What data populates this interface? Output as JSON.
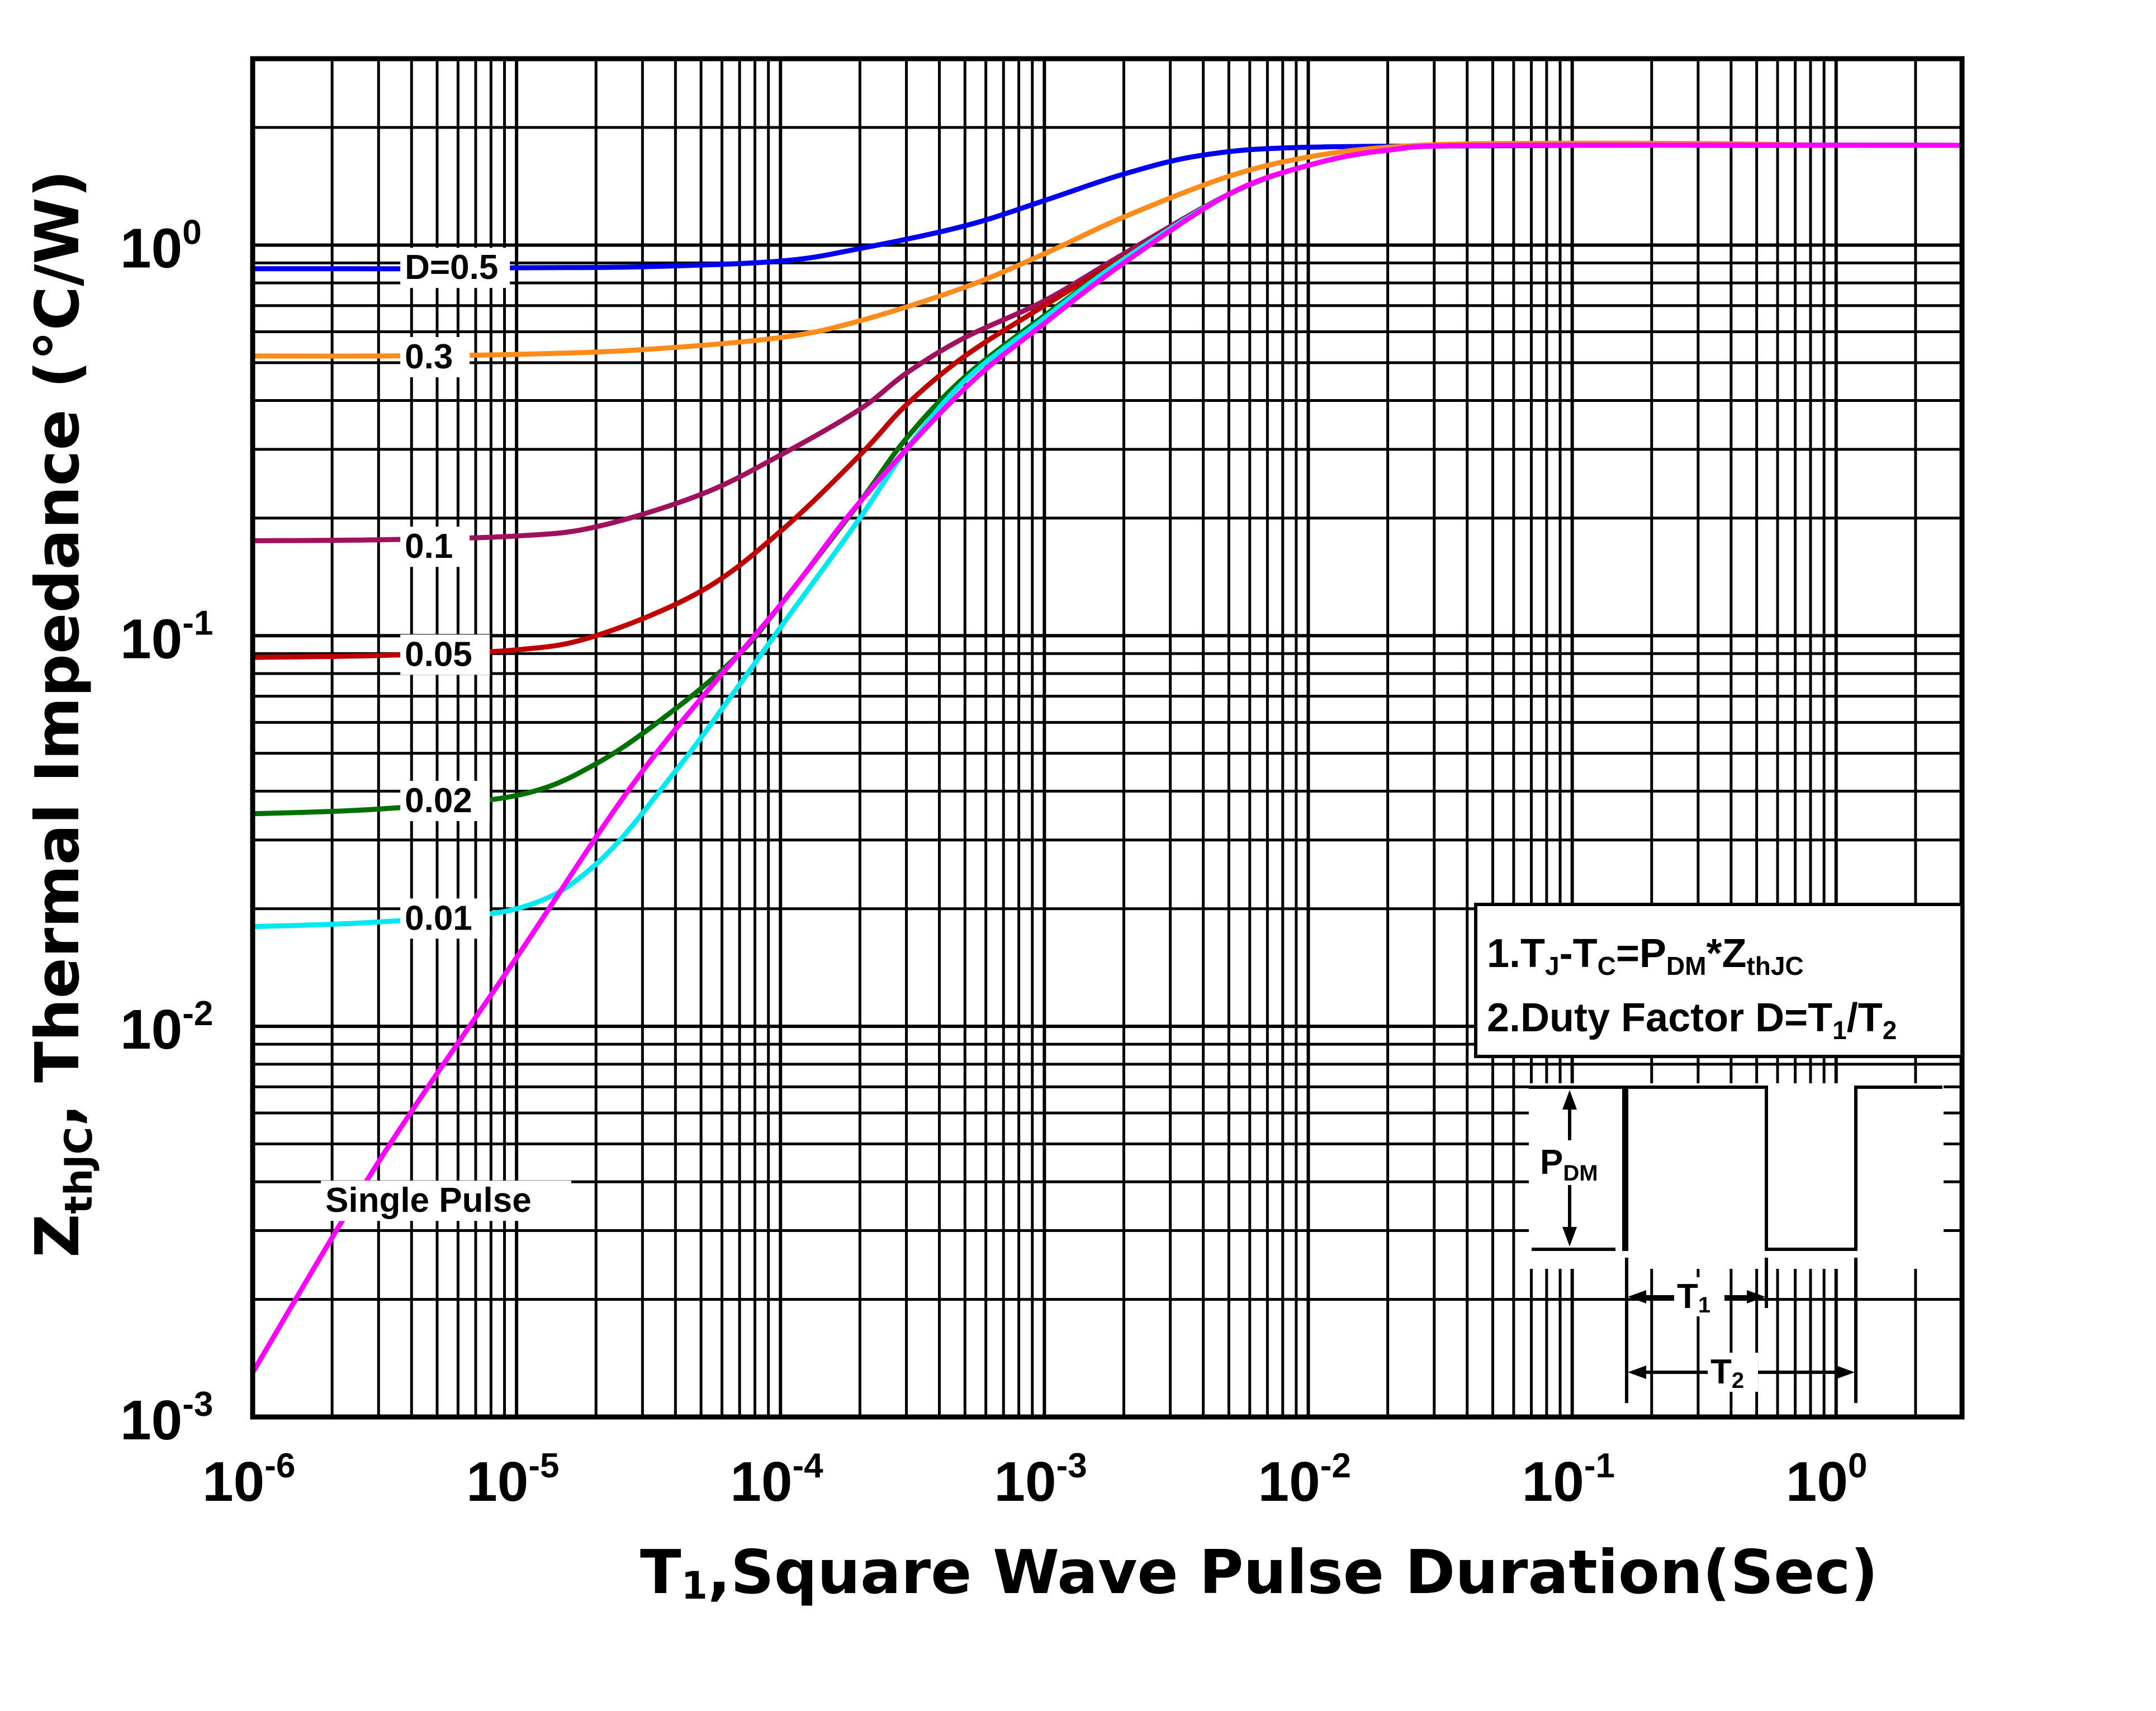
{
  "chart_data": {
    "type": "line",
    "title": "",
    "xlabel": "T1,Square Wave Pulse Duration(Sec)",
    "xlabel_parts": {
      "main": "T",
      "sub": "1",
      "rest": ",Square Wave Pulse Duration(Sec)"
    },
    "ylabel": "ZthJC, Thermal Impedance (°C/W)",
    "ylabel_parts": {
      "main": "Z",
      "sub": "thJC",
      "rest": ", Thermal  Impedance (°C/W)"
    },
    "xscale": "log",
    "yscale": "log",
    "xlim": [
      1e-06,
      3.0
    ],
    "ylim": [
      0.001,
      3.0
    ],
    "grid": true,
    "x_ticks": [
      {
        "base": "10",
        "exp": "-6",
        "value": 1e-06
      },
      {
        "base": "10",
        "exp": "-5",
        "value": 1e-05
      },
      {
        "base": "10",
        "exp": "-4",
        "value": 0.0001
      },
      {
        "base": "10",
        "exp": "-3",
        "value": 0.001
      },
      {
        "base": "10",
        "exp": "-2",
        "value": 0.01
      },
      {
        "base": "10",
        "exp": "-1",
        "value": 0.1
      },
      {
        "base": "10",
        "exp": "0",
        "value": 1
      }
    ],
    "y_ticks": [
      {
        "base": "10",
        "exp": "0",
        "value": 1
      },
      {
        "base": "10",
        "exp": "-1",
        "value": 0.1
      },
      {
        "base": "10",
        "exp": "-2",
        "value": 0.01
      },
      {
        "base": "10",
        "exp": "-3",
        "value": 0.001
      }
    ],
    "series": [
      {
        "name": "D=0.5",
        "color": "#0000ee",
        "label": "D=0.5",
        "label_at": [
          1e-05,
          0.88
        ],
        "points": [
          [
            1e-06,
            0.87
          ],
          [
            2e-06,
            0.87
          ],
          [
            5e-06,
            0.87
          ],
          [
            1e-05,
            0.875
          ],
          [
            3e-05,
            0.88
          ],
          [
            0.0001,
            0.91
          ],
          [
            0.0002,
            0.98
          ],
          [
            0.0005,
            1.12
          ],
          [
            0.001,
            1.3
          ],
          [
            0.002,
            1.52
          ],
          [
            0.004,
            1.7
          ],
          [
            0.01,
            1.78
          ],
          [
            0.1,
            1.8
          ],
          [
            0.2,
            1.82
          ],
          [
            0.3,
            1.8
          ],
          [
            1,
            1.8
          ],
          [
            3,
            1.8
          ]
        ]
      },
      {
        "name": "0.3",
        "color": "#ff8c1a",
        "label": "0.3",
        "label_at": [
          1e-05,
          0.52
        ],
        "points": [
          [
            1e-06,
            0.52
          ],
          [
            3e-06,
            0.52
          ],
          [
            1e-05,
            0.525
          ],
          [
            3e-05,
            0.54
          ],
          [
            0.0001,
            0.58
          ],
          [
            0.0002,
            0.64
          ],
          [
            0.0005,
            0.78
          ],
          [
            0.001,
            0.95
          ],
          [
            0.002,
            1.18
          ],
          [
            0.005,
            1.5
          ],
          [
            0.01,
            1.68
          ],
          [
            0.02,
            1.78
          ],
          [
            0.05,
            1.82
          ],
          [
            0.3,
            1.82
          ],
          [
            1,
            1.8
          ],
          [
            3,
            1.8
          ]
        ]
      },
      {
        "name": "0.1",
        "color": "#a0105c",
        "label": "0.1",
        "label_at": [
          1e-05,
          0.17
        ],
        "points": [
          [
            1e-06,
            0.175
          ],
          [
            3e-06,
            0.176
          ],
          [
            1e-05,
            0.18
          ],
          [
            2e-05,
            0.19
          ],
          [
            5e-05,
            0.23
          ],
          [
            0.0001,
            0.29
          ],
          [
            0.0002,
            0.38
          ],
          [
            0.0003,
            0.47
          ],
          [
            0.0005,
            0.58
          ],
          [
            0.001,
            0.72
          ],
          [
            0.002,
            0.95
          ],
          [
            0.005,
            1.35
          ],
          [
            0.01,
            1.6
          ],
          [
            0.02,
            1.75
          ],
          [
            0.05,
            1.8
          ],
          [
            3,
            1.8
          ]
        ]
      },
      {
        "name": "0.05",
        "color": "#c00000",
        "label": "0.05",
        "label_at": [
          1e-05,
          0.09
        ],
        "points": [
          [
            1e-06,
            0.088
          ],
          [
            3e-06,
            0.089
          ],
          [
            1e-05,
            0.092
          ],
          [
            2e-05,
            0.1
          ],
          [
            5e-05,
            0.13
          ],
          [
            0.0001,
            0.185
          ],
          [
            0.0002,
            0.29
          ],
          [
            0.0003,
            0.39
          ],
          [
            0.0005,
            0.52
          ],
          [
            0.001,
            0.7
          ],
          [
            0.002,
            0.93
          ],
          [
            0.005,
            1.35
          ],
          [
            0.01,
            1.6
          ],
          [
            0.02,
            1.75
          ],
          [
            0.05,
            1.8
          ],
          [
            3,
            1.8
          ]
        ]
      },
      {
        "name": "0.02",
        "color": "#007000",
        "label": "0.02",
        "label_at": [
          1e-05,
          0.038
        ],
        "points": [
          [
            1e-06,
            0.035
          ],
          [
            3e-06,
            0.036
          ],
          [
            1e-05,
            0.039
          ],
          [
            2e-05,
            0.047
          ],
          [
            4e-05,
            0.065
          ],
          [
            7e-05,
            0.09
          ],
          [
            0.0001,
            0.12
          ],
          [
            0.0002,
            0.22
          ],
          [
            0.0003,
            0.32
          ],
          [
            0.0005,
            0.46
          ],
          [
            0.001,
            0.66
          ],
          [
            0.002,
            0.92
          ],
          [
            0.005,
            1.35
          ],
          [
            0.01,
            1.6
          ],
          [
            0.02,
            1.75
          ],
          [
            0.05,
            1.8
          ],
          [
            3,
            1.8
          ]
        ]
      },
      {
        "name": "0.01",
        "color": "#00e8f0",
        "label": "0.01",
        "label_at": [
          1e-05,
          0.019
        ],
        "points": [
          [
            1e-06,
            0.018
          ],
          [
            3e-06,
            0.0185
          ],
          [
            1e-05,
            0.02
          ],
          [
            2e-05,
            0.026
          ],
          [
            4e-05,
            0.045
          ],
          [
            7e-05,
            0.075
          ],
          [
            0.0001,
            0.105
          ],
          [
            0.0002,
            0.2
          ],
          [
            0.0003,
            0.3
          ],
          [
            0.0005,
            0.45
          ],
          [
            0.001,
            0.65
          ],
          [
            0.002,
            0.92
          ],
          [
            0.005,
            1.35
          ],
          [
            0.01,
            1.6
          ],
          [
            0.02,
            1.75
          ],
          [
            0.05,
            1.8
          ],
          [
            3,
            1.8
          ]
        ]
      },
      {
        "name": "Single Pulse",
        "color": "#ff00ff",
        "label": "Single Pulse",
        "label_at": [
          5e-06,
          0.0036
        ],
        "points": [
          [
            1e-06,
            0.0013
          ],
          [
            3e-06,
            0.0045
          ],
          [
            1e-05,
            0.015
          ],
          [
            3e-05,
            0.045
          ],
          [
            0.0001,
            0.12
          ],
          [
            0.0002,
            0.22
          ],
          [
            0.0005,
            0.43
          ],
          [
            0.001,
            0.63
          ],
          [
            0.002,
            0.9
          ],
          [
            0.005,
            1.35
          ],
          [
            0.01,
            1.6
          ],
          [
            0.02,
            1.75
          ],
          [
            0.05,
            1.8
          ],
          [
            3,
            1.8
          ]
        ]
      }
    ],
    "annotations": {
      "note_line1": {
        "a": "1.T",
        "a_sub": "J",
        "b": "-T",
        "b_sub": "C",
        "c": "=P",
        "c_sub": "DM",
        "d": "*Z",
        "d_sub": "thJC"
      },
      "note_line2": {
        "a": "2.Duty Factor D=T",
        "a_sub": "1",
        "b": "/T",
        "b_sub": "2"
      },
      "pdm": {
        "main": "P",
        "sub": "DM"
      },
      "t1": {
        "main": "T",
        "sub": "1"
      },
      "t2": {
        "main": "T",
        "sub": "2"
      }
    }
  }
}
